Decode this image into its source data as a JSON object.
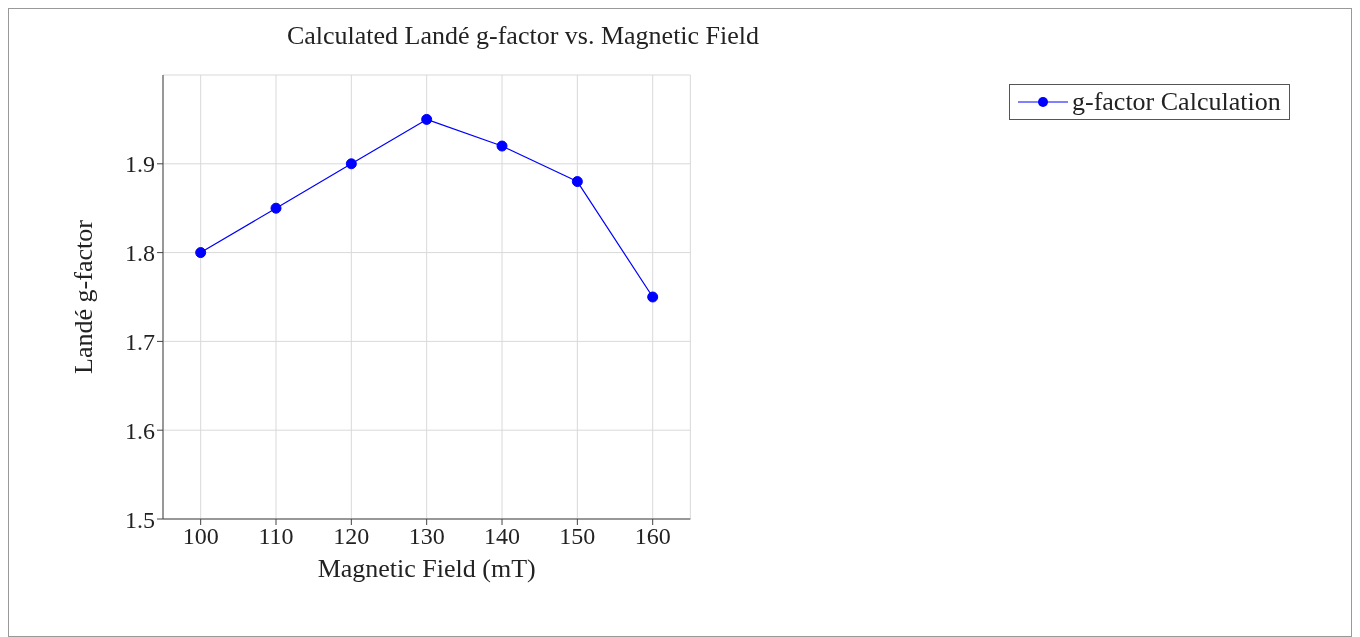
{
  "chart_data": {
    "type": "line",
    "title": "Calculated Landé g-factor vs. Magnetic Field",
    "xlabel": "Magnetic Field (mT)",
    "ylabel": "Landé g-factor",
    "x": [
      100,
      110,
      120,
      130,
      140,
      150,
      160
    ],
    "series": [
      {
        "name": "g-factor Calculation",
        "color": "#0000ff",
        "values": [
          1.8,
          1.85,
          1.9,
          1.95,
          1.92,
          1.88,
          1.75
        ]
      }
    ],
    "xlim": [
      95,
      165
    ],
    "xticks": [
      100,
      110,
      120,
      130,
      140,
      150,
      160
    ],
    "ylim": [
      1.5,
      2.0
    ],
    "yticks": [
      1.5,
      1.6,
      1.7,
      1.8,
      1.9
    ],
    "grid": true,
    "legend": "top right",
    "marker": "circle",
    "line_style": "solid"
  }
}
